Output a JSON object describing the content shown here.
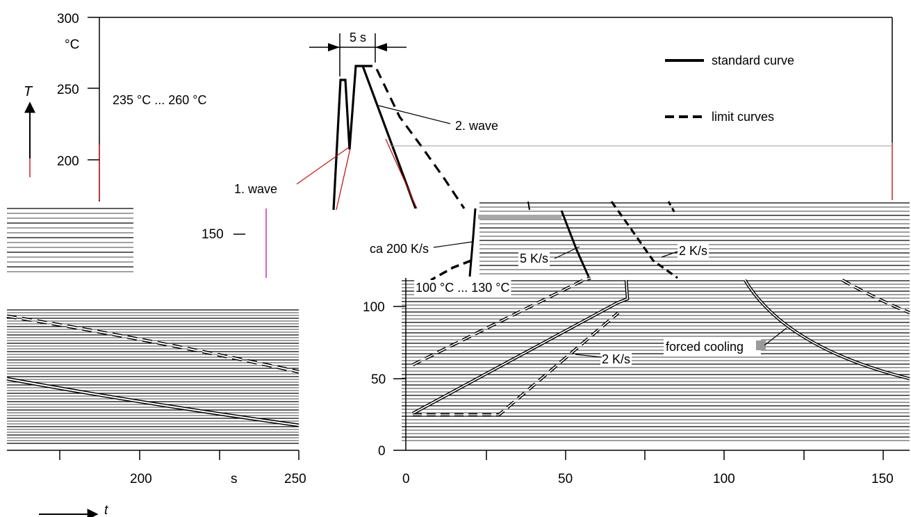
{
  "chart_data": {
    "type": "line",
    "title": "",
    "y_unit": "°C",
    "y_symbol": "T",
    "x_unit": "s",
    "x_symbol": "t",
    "top_y_ticks": [
      "300",
      "250",
      "200",
      "150"
    ],
    "left_x_ticks": [
      "200",
      "s",
      "250"
    ],
    "right_y_ticks": [
      "100",
      "50",
      "0"
    ],
    "right_x_ticks": [
      "0",
      "50",
      "100",
      "150"
    ],
    "ylim": [
      0,
      300
    ],
    "legend": {
      "position": "top-right",
      "entries": [
        {
          "label": "standard curve",
          "style": "solid"
        },
        {
          "label": "limit curves",
          "style": "dashed"
        }
      ]
    },
    "annotations": {
      "preheat_range": "235 °C ... 260 °C",
      "wave_time": "5 s",
      "wave1": "1. wave",
      "wave2": "2. wave",
      "rate_200": "ca 200 K/s",
      "rate_5": "5 K/s",
      "rate_2a": "2 K/s",
      "rate_2b": "2 K/s",
      "entry_range": "100 °C ... 130 °C",
      "forced_cooling": "forced cooling"
    },
    "series": [
      {
        "name": "standard curve",
        "style": "solid",
        "x": [
          0,
          68,
          70,
          70
        ],
        "y": [
          25,
          100,
          110,
          250
        ]
      },
      {
        "name": "limit curves",
        "style": "dashed",
        "x": [
          0,
          35,
          70
        ],
        "y": [
          25,
          25,
          100
        ]
      },
      {
        "name": "limit curves",
        "style": "dashed",
        "x": [
          0,
          57
        ],
        "y": [
          60,
          115
        ]
      },
      {
        "name": "standard curve",
        "style": "solid",
        "x": [
          108,
          120,
          140,
          160
        ],
        "y": [
          115,
          80,
          62,
          48
        ]
      }
    ]
  }
}
